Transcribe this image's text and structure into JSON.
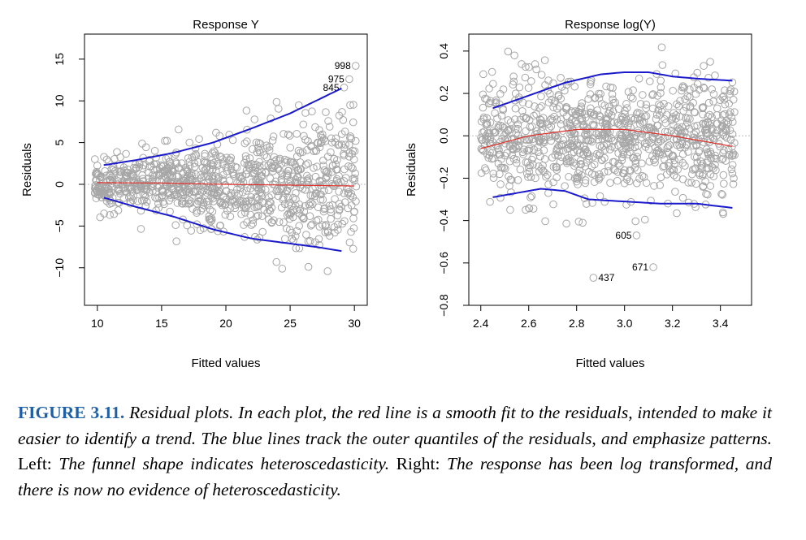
{
  "chart_data": [
    {
      "type": "scatter",
      "title": "Response Y",
      "xlabel": "Fitted values",
      "ylabel": "Residuals",
      "xlim": [
        9,
        31
      ],
      "ylim": [
        -14.5,
        18
      ],
      "xticks": [
        10,
        15,
        20,
        25,
        30
      ],
      "xtick_labels": [
        "10",
        "15",
        "20",
        "25",
        "30"
      ],
      "yticks": [
        -10,
        -5,
        0,
        5,
        10,
        15
      ],
      "ytick_labels": [
        "−10",
        "−5",
        "0",
        "5",
        "10",
        "15"
      ],
      "point_color": "#a6a6a6",
      "smooth_color": "#e0302a",
      "quantile_color": "#1a1acc",
      "reference_line": 0,
      "scatter_summary": {
        "n": 1000,
        "x_range": [
          9.8,
          30.2
        ],
        "center": 0,
        "spread_left": 2.5,
        "spread_right": 7.5
      },
      "smooth_fit": {
        "x": [
          10,
          15,
          20,
          25,
          30
        ],
        "y": [
          0.2,
          0.15,
          0,
          -0.1,
          -0.2
        ]
      },
      "upper_quantile": {
        "x": [
          10.5,
          13,
          16,
          19,
          22,
          25,
          27,
          29
        ],
        "y": [
          2.3,
          2.9,
          3.8,
          5.0,
          6.7,
          8.5,
          10.0,
          11.5
        ]
      },
      "lower_quantile": {
        "x": [
          10.5,
          13,
          16,
          19,
          22,
          25,
          27,
          29
        ],
        "y": [
          -1.6,
          -2.7,
          -3.9,
          -5.4,
          -6.5,
          -7.1,
          -7.5,
          -8.0
        ]
      },
      "annotations": [
        {
          "label": "998",
          "x": 30.1,
          "y": 14.2
        },
        {
          "label": "975",
          "x": 29.6,
          "y": 12.6
        },
        {
          "label": "845",
          "x": 29.2,
          "y": 11.6
        }
      ]
    },
    {
      "type": "scatter",
      "title": "Response log(Y)",
      "xlabel": "Fitted values",
      "ylabel": "Residuals",
      "xlim": [
        2.35,
        3.53
      ],
      "ylim": [
        -0.8,
        0.48
      ],
      "xticks": [
        2.4,
        2.6,
        2.8,
        3.0,
        3.2,
        3.4
      ],
      "xtick_labels": [
        "2.4",
        "2.6",
        "2.8",
        "3.0",
        "3.2",
        "3.4"
      ],
      "yticks": [
        -0.8,
        -0.6,
        -0.4,
        -0.2,
        0.0,
        0.2,
        0.4
      ],
      "ytick_labels": [
        "−0.8",
        "−0.6",
        "−0.4",
        "−0.2",
        "0.0",
        "0.2",
        "0.4"
      ],
      "point_color": "#a6a6a6",
      "smooth_color": "#e0302a",
      "quantile_color": "#1a1acc",
      "reference_line": 0,
      "scatter_summary": {
        "n": 1000,
        "x_range": [
          2.4,
          3.46
        ],
        "center": 0,
        "spread": 0.26
      },
      "smooth_fit": {
        "x": [
          2.4,
          2.6,
          2.8,
          3.0,
          3.2,
          3.45
        ],
        "y": [
          -0.06,
          0.0,
          0.03,
          0.03,
          0.0,
          -0.05
        ]
      },
      "upper_quantile": {
        "x": [
          2.45,
          2.6,
          2.75,
          2.9,
          3.0,
          3.1,
          3.2,
          3.3,
          3.45
        ],
        "y": [
          0.13,
          0.19,
          0.25,
          0.29,
          0.3,
          0.3,
          0.28,
          0.27,
          0.26
        ]
      },
      "lower_quantile": {
        "x": [
          2.45,
          2.55,
          2.65,
          2.75,
          2.85,
          3.0,
          3.15,
          3.3,
          3.45
        ],
        "y": [
          -0.29,
          -0.27,
          -0.25,
          -0.26,
          -0.3,
          -0.31,
          -0.32,
          -0.32,
          -0.34
        ]
      },
      "annotations": [
        {
          "label": "605",
          "x": 3.05,
          "y": -0.47
        },
        {
          "label": "671",
          "x": 3.12,
          "y": -0.62
        },
        {
          "label": "437",
          "x": 2.87,
          "y": -0.67
        }
      ]
    }
  ],
  "caption": {
    "label": "FIGURE 3.11.",
    "part1": "Residual plots. In each plot, the red line is a smooth fit to the residuals, intended to make it easier to identify a trend. The blue lines track the outer quantiles of the residuals, and emphasize patterns.",
    "left_label": "Left:",
    "part2": "The funnel shape indicates heteroscedasticity.",
    "right_label": "Right:",
    "part3": "The response has been log transformed, and there is now no evidence of heteroscedasticity."
  }
}
